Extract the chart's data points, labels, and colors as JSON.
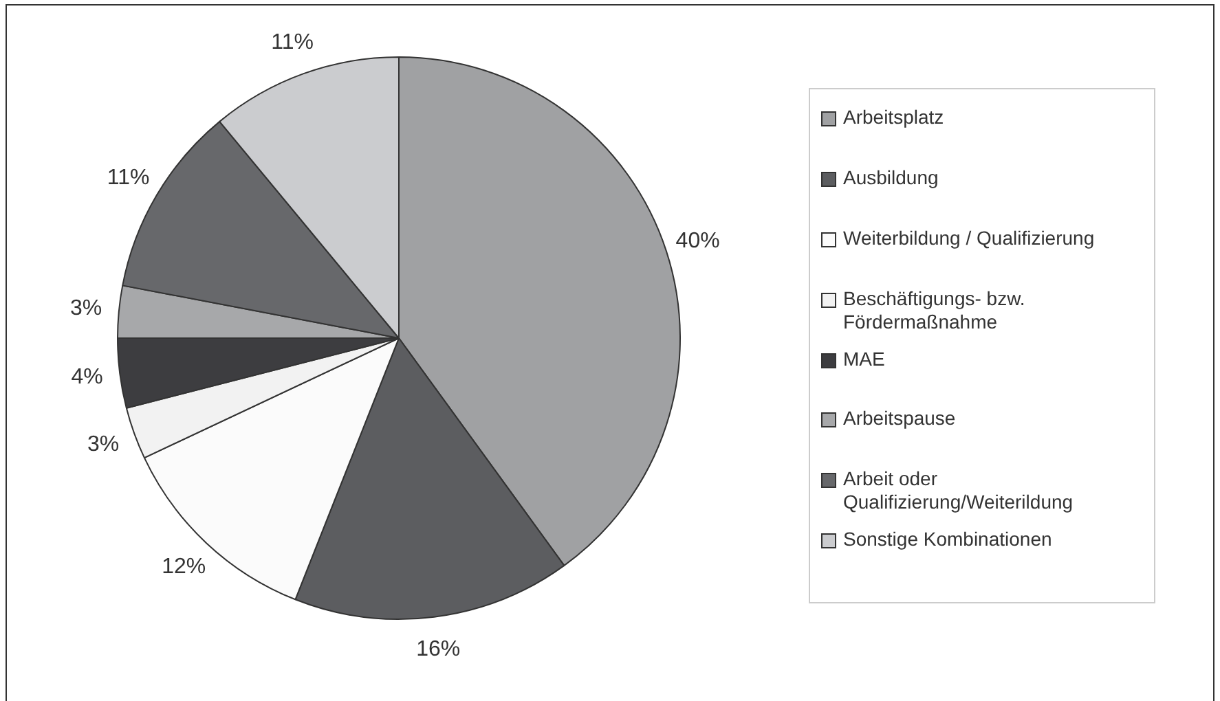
{
  "chart_data": {
    "type": "pie",
    "categories": [
      "Arbeitsplatz",
      "Ausbildung",
      "Weiterbildung / Qualifizierung",
      "Beschäftigungs- bzw. Fördermaßnahme",
      "MAE",
      "Arbeitspause",
      "Arbeit oder Qualifizierung/Weiterildung",
      "Sonstige Kombinationen"
    ],
    "values": [
      40,
      16,
      12,
      3,
      4,
      3,
      11,
      11
    ],
    "value_labels": [
      "40%",
      "16%",
      "12%",
      "3%",
      "4%",
      "3%",
      "11%",
      "11%"
    ],
    "colors": [
      "#a0a1a3",
      "#5c5d60",
      "#fbfbfb",
      "#f2f2f2",
      "#3d3d40",
      "#a7a8aa",
      "#67686b",
      "#cbcccf"
    ],
    "legend": "right"
  }
}
